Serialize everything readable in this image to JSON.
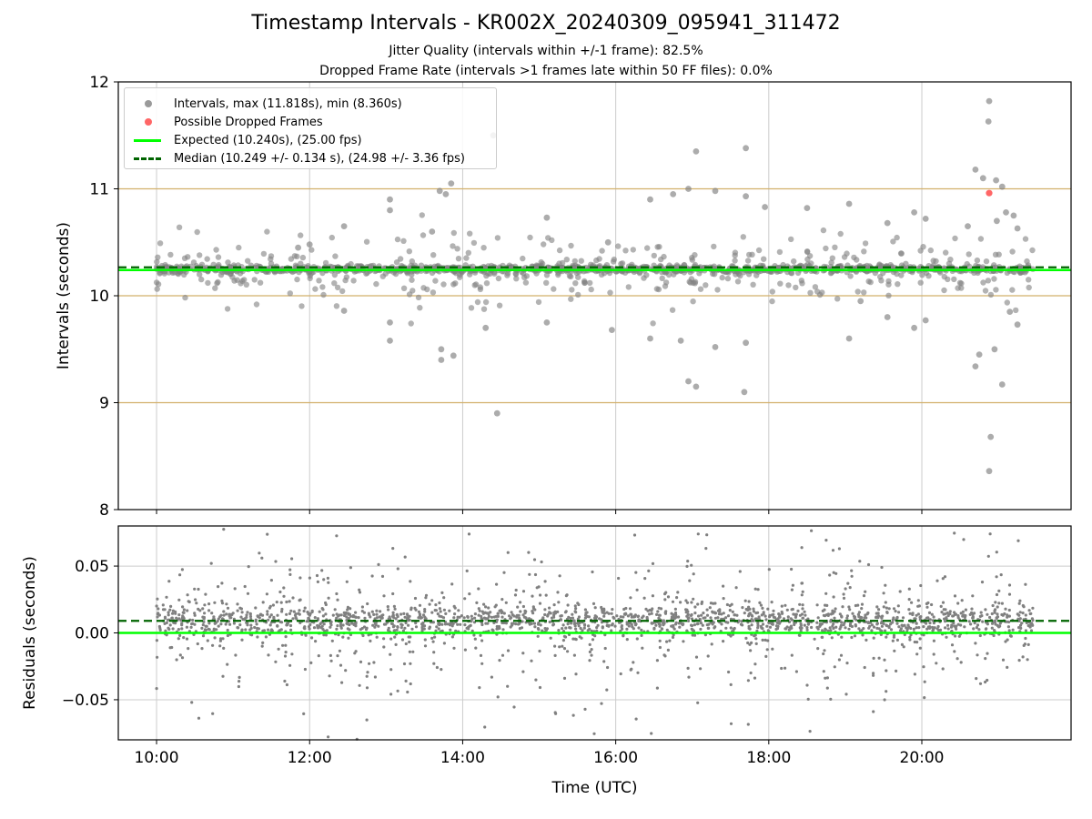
{
  "header": {
    "title": "Timestamp Intervals - KR002X_20240309_095941_311472",
    "subtitle1": "Jitter Quality (intervals within +/-1 frame): 82.5%",
    "subtitle2": "Dropped Frame Rate (intervals >1 frames late within 50 FF files): 0.0%"
  },
  "chart_data": [
    {
      "type": "scatter",
      "name": "intervals",
      "ylabel": "Intervals (seconds)",
      "xlim": [
        9.5,
        21.95
      ],
      "ylim": [
        8,
        12
      ],
      "y_ticks": [
        8,
        9,
        10,
        11,
        12
      ],
      "y_tick_labels": [
        "8",
        "9",
        "10",
        "11",
        "12"
      ],
      "grid": true,
      "frame_lines": [
        9.0,
        10.0,
        11.0
      ],
      "legend_position": "upper-left",
      "expected": 10.24,
      "median": 10.249,
      "legend": {
        "intervals": "Intervals, max (11.818s), min (8.360s)",
        "dropped": "Possible Dropped Frames",
        "expected": "Expected (10.240s), (25.00 fps)",
        "median": "Median (10.249 +/- 0.134 s), (24.98 +/- 3.36 fps)"
      },
      "dropped_points": [
        {
          "x": 20.88,
          "y": 10.96
        }
      ],
      "outliers": [
        {
          "x": 11.85,
          "y": 10.45
        },
        {
          "x": 12.0,
          "y": 10.48
        },
        {
          "x": 12.45,
          "y": 10.65
        },
        {
          "x": 12.45,
          "y": 9.86
        },
        {
          "x": 13.05,
          "y": 10.9
        },
        {
          "x": 13.05,
          "y": 10.8
        },
        {
          "x": 13.05,
          "y": 9.75
        },
        {
          "x": 13.05,
          "y": 9.58
        },
        {
          "x": 13.7,
          "y": 10.98
        },
        {
          "x": 13.78,
          "y": 10.95
        },
        {
          "x": 13.85,
          "y": 11.05
        },
        {
          "x": 13.72,
          "y": 9.5
        },
        {
          "x": 13.72,
          "y": 9.4
        },
        {
          "x": 13.88,
          "y": 9.44
        },
        {
          "x": 13.6,
          "y": 10.6
        },
        {
          "x": 14.4,
          "y": 11.5
        },
        {
          "x": 14.45,
          "y": 8.9
        },
        {
          "x": 14.3,
          "y": 9.7
        },
        {
          "x": 15.1,
          "y": 10.73
        },
        {
          "x": 15.1,
          "y": 9.75
        },
        {
          "x": 15.9,
          "y": 10.5
        },
        {
          "x": 15.95,
          "y": 9.68
        },
        {
          "x": 16.45,
          "y": 10.9
        },
        {
          "x": 16.45,
          "y": 9.6
        },
        {
          "x": 16.75,
          "y": 10.95
        },
        {
          "x": 16.85,
          "y": 9.58
        },
        {
          "x": 16.95,
          "y": 11.0
        },
        {
          "x": 16.95,
          "y": 9.2
        },
        {
          "x": 17.05,
          "y": 11.35
        },
        {
          "x": 17.05,
          "y": 9.15
        },
        {
          "x": 17.3,
          "y": 10.98
        },
        {
          "x": 17.3,
          "y": 9.52
        },
        {
          "x": 17.7,
          "y": 11.38
        },
        {
          "x": 17.7,
          "y": 10.93
        },
        {
          "x": 17.68,
          "y": 9.1
        },
        {
          "x": 17.7,
          "y": 9.56
        },
        {
          "x": 17.95,
          "y": 10.83
        },
        {
          "x": 18.5,
          "y": 10.82
        },
        {
          "x": 19.05,
          "y": 10.86
        },
        {
          "x": 19.2,
          "y": 9.95
        },
        {
          "x": 19.05,
          "y": 9.6
        },
        {
          "x": 19.55,
          "y": 10.68
        },
        {
          "x": 19.55,
          "y": 9.8
        },
        {
          "x": 19.9,
          "y": 10.78
        },
        {
          "x": 19.9,
          "y": 9.7
        },
        {
          "x": 20.05,
          "y": 10.72
        },
        {
          "x": 20.05,
          "y": 9.77
        },
        {
          "x": 20.6,
          "y": 10.65
        },
        {
          "x": 20.7,
          "y": 11.18
        },
        {
          "x": 20.8,
          "y": 11.1
        },
        {
          "x": 20.75,
          "y": 9.45
        },
        {
          "x": 20.7,
          "y": 9.34
        },
        {
          "x": 20.88,
          "y": 11.82
        },
        {
          "x": 20.87,
          "y": 11.63
        },
        {
          "x": 20.97,
          "y": 11.08
        },
        {
          "x": 21.05,
          "y": 11.02
        },
        {
          "x": 20.9,
          "y": 8.68
        },
        {
          "x": 20.88,
          "y": 8.36
        },
        {
          "x": 20.95,
          "y": 9.5
        },
        {
          "x": 21.05,
          "y": 9.17
        },
        {
          "x": 21.1,
          "y": 10.78
        },
        {
          "x": 21.2,
          "y": 10.75
        },
        {
          "x": 21.25,
          "y": 10.63
        },
        {
          "x": 21.25,
          "y": 9.73
        },
        {
          "x": 21.15,
          "y": 9.85
        },
        {
          "x": 20.98,
          "y": 10.7
        }
      ]
    },
    {
      "type": "scatter",
      "name": "residuals",
      "xlabel": "Time (UTC)",
      "ylabel": "Residuals (seconds)",
      "xlim": [
        9.5,
        21.95
      ],
      "ylim": [
        -0.08,
        0.08
      ],
      "x_ticks": [
        10,
        12,
        14,
        16,
        18,
        20
      ],
      "x_tick_labels": [
        "10:00",
        "12:00",
        "14:00",
        "16:00",
        "18:00",
        "20:00"
      ],
      "y_ticks": [
        -0.05,
        0.0,
        0.05
      ],
      "y_tick_labels": [
        "−0.05",
        "0.00",
        "0.05"
      ],
      "grid": true,
      "expected": 0.0,
      "median": 0.009
    }
  ],
  "colors": {
    "points": "#808080",
    "dropped": "#ff6666",
    "expected": "#00ff00",
    "median": "#006400",
    "frame_lines": "#d2b06b",
    "grid": "#cccccc"
  },
  "icons": {
    "intervals_marker": "grey-dot-icon",
    "dropped_marker": "red-dot-icon",
    "expected_marker": "green-line-icon",
    "median_marker": "dashed-green-line-icon"
  }
}
